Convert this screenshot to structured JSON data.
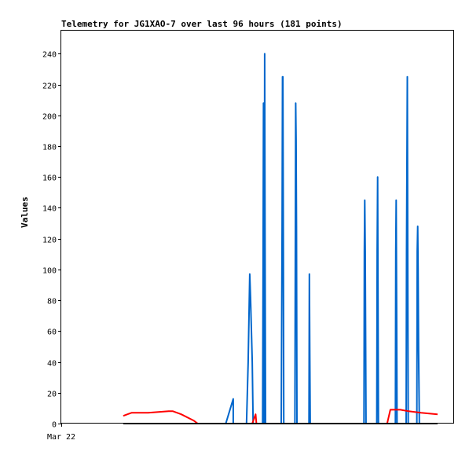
{
  "chart_data": {
    "type": "line",
    "title": "Telemetry for JG1XAO-7 over last 96 hours (181 points)",
    "ylabel": "Values",
    "xlabel": "",
    "x_tick_labels": [
      "Mar 22"
    ],
    "ylim": [
      0,
      255
    ],
    "y_ticks": [
      0,
      20,
      40,
      60,
      80,
      100,
      120,
      140,
      160,
      180,
      200,
      220,
      240
    ],
    "grid": false,
    "legend": "none",
    "series": [
      {
        "color": "#0066cc",
        "points": [
          [
            0.4189,
            0
          ],
          [
            0.4378,
            16
          ],
          [
            0.4378,
            0
          ],
          [
            0.4715,
            0
          ],
          [
            0.4757,
            40
          ],
          [
            0.4799,
            97
          ],
          [
            0.482,
            80
          ],
          [
            0.4862,
            40
          ],
          [
            0.4884,
            0
          ],
          [
            0.5126,
            0
          ],
          [
            0.5137,
            103
          ],
          [
            0.5147,
            208
          ],
          [
            0.5157,
            0
          ],
          [
            0.5168,
            0
          ],
          [
            0.5179,
            240
          ],
          [
            0.5189,
            120
          ],
          [
            0.52,
            0
          ],
          [
            0.56,
            0
          ],
          [
            0.5621,
            128
          ],
          [
            0.5632,
            225
          ],
          [
            0.5642,
            225
          ],
          [
            0.5653,
            112
          ],
          [
            0.5663,
            0
          ],
          [
            0.5947,
            0
          ],
          [
            0.5957,
            104
          ],
          [
            0.5968,
            208
          ],
          [
            0.5979,
            184
          ],
          [
            0.5989,
            128
          ],
          [
            0.6,
            0
          ],
          [
            0.6305,
            0
          ],
          [
            0.6316,
            97
          ],
          [
            0.6326,
            48
          ],
          [
            0.6337,
            0
          ],
          [
            0.7705,
            0
          ],
          [
            0.7716,
            112
          ],
          [
            0.7726,
            145
          ],
          [
            0.7737,
            112
          ],
          [
            0.7758,
            0
          ],
          [
            0.8032,
            0
          ],
          [
            0.8042,
            112
          ],
          [
            0.8053,
            160
          ],
          [
            0.8063,
            80
          ],
          [
            0.8074,
            0
          ],
          [
            0.8505,
            0
          ],
          [
            0.8516,
            112
          ],
          [
            0.8526,
            145
          ],
          [
            0.8537,
            72
          ],
          [
            0.8547,
            0
          ],
          [
            0.8779,
            0
          ],
          [
            0.8789,
            112
          ],
          [
            0.88,
            168
          ],
          [
            0.8811,
            225
          ],
          [
            0.8821,
            112
          ],
          [
            0.8832,
            0
          ],
          [
            0.9053,
            0
          ],
          [
            0.9063,
            112
          ],
          [
            0.9074,
            128
          ],
          [
            0.9084,
            100
          ],
          [
            0.9095,
            48
          ],
          [
            0.9116,
            0
          ],
          [
            0.9579,
            0
          ]
        ]
      },
      {
        "color": "#ff0000",
        "points": [
          [
            0.1579,
            5
          ],
          [
            0.1684,
            6
          ],
          [
            0.1789,
            7
          ],
          [
            0.2211,
            7
          ],
          [
            0.2737,
            8
          ],
          [
            0.2842,
            8
          ],
          [
            0.3053,
            6
          ],
          [
            0.3368,
            2
          ],
          [
            0.3474,
            0
          ],
          [
            0.4863,
            0
          ],
          [
            0.4947,
            6
          ],
          [
            0.4968,
            0
          ],
          [
            0.8295,
            0
          ],
          [
            0.8379,
            9
          ],
          [
            0.8632,
            9
          ],
          [
            0.8842,
            8
          ],
          [
            0.9158,
            7
          ],
          [
            0.9579,
            6
          ]
        ]
      },
      {
        "color": "#000000",
        "points": [
          [
            0.1579,
            0
          ],
          [
            0.9579,
            0
          ]
        ]
      }
    ]
  }
}
